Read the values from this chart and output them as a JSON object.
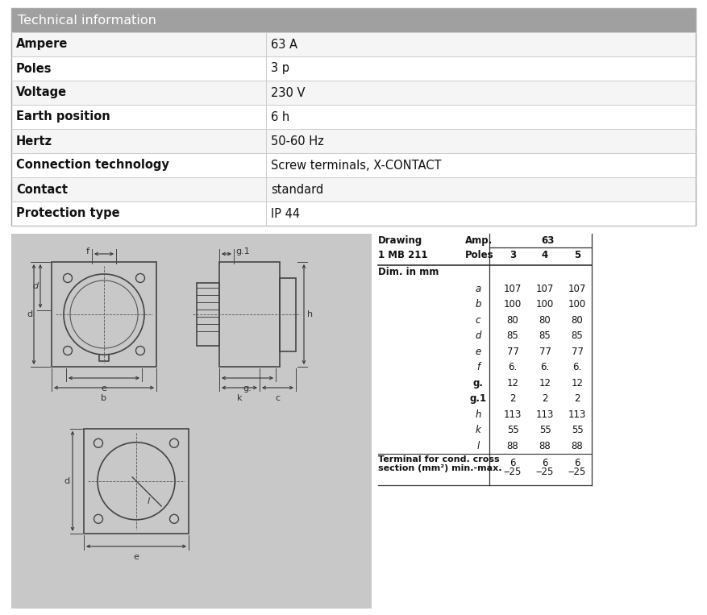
{
  "title": "Technical information",
  "title_bg": "#a0a0a0",
  "row_bgs": [
    "#f5f5f5",
    "#ffffff",
    "#f5f5f5",
    "#ffffff",
    "#f5f5f5",
    "#ffffff",
    "#f5f5f5",
    "#ffffff"
  ],
  "border_color": "#cccccc",
  "text_color": "#111111",
  "tech_rows": [
    [
      "Ampere",
      "63 A"
    ],
    [
      "Poles",
      "3 p"
    ],
    [
      "Voltage",
      "230 V"
    ],
    [
      "Earth position",
      "6 h"
    ],
    [
      "Hertz",
      "50-60 Hz"
    ],
    [
      "Connection technology",
      "Screw terminals, X-CONTACT"
    ],
    [
      "Contact",
      "standard"
    ],
    [
      "Protection type",
      "IP 44"
    ]
  ],
  "drawing_title": "Drawing",
  "drawing_subtitle": "1 MB 211",
  "dim_label": "Dim. in mm",
  "amp_label": "Amp.",
  "poles_label": "Poles",
  "amp_value": "63",
  "poles_values": [
    "3",
    "4",
    "5"
  ],
  "dim_rows": [
    [
      "a",
      "107",
      "107",
      "107"
    ],
    [
      "b",
      "100",
      "100",
      "100"
    ],
    [
      "c",
      "80",
      "80",
      "80"
    ],
    [
      "d",
      "85",
      "85",
      "85"
    ],
    [
      "e",
      "77",
      "77",
      "77"
    ],
    [
      "f",
      "6.",
      "6.",
      "6."
    ],
    [
      "g.",
      "12",
      "12",
      "12"
    ],
    [
      "g.1",
      "2",
      "2",
      "2"
    ],
    [
      "h",
      "113",
      "113",
      "113"
    ],
    [
      "k",
      "55",
      "55",
      "55"
    ],
    [
      "l",
      "88",
      "88",
      "88"
    ]
  ],
  "terminal_row1": "Terminal for cond. cross",
  "terminal_row2": "section (mm²) min.-max.",
  "terminal_values": [
    "6",
    "6",
    "6"
  ],
  "terminal_max_values": [
    "‒25",
    "‒25",
    "‒25"
  ],
  "diagram_bg": "#c8c8c8",
  "fig_width": 8.77,
  "fig_height": 7.63
}
